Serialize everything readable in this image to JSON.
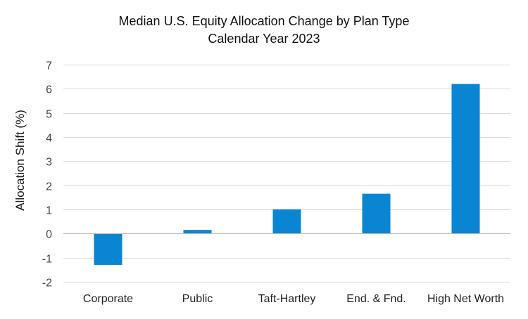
{
  "chart_data": {
    "type": "bar",
    "title": "Median U.S. Equity Allocation Change by Plan Type",
    "subtitle": "Calendar Year 2023",
    "xlabel": "",
    "ylabel": "Allocation Shift (%)",
    "categories": [
      "Corporate",
      "Public",
      "Taft-Hartley",
      "End. & Fnd.",
      "High Net Worth"
    ],
    "values": [
      -1.3,
      0.15,
      1.0,
      1.65,
      6.2
    ],
    "ylim": [
      -2,
      7
    ],
    "yticks": [
      "-2",
      "-1",
      "0",
      "1",
      "2",
      "3",
      "4",
      "5",
      "6",
      "7"
    ],
    "grid": true,
    "legend": "none",
    "bar_color": "#0985D1",
    "grid_color": "#D9D9D9",
    "axis_color": "#BFBFBF"
  }
}
